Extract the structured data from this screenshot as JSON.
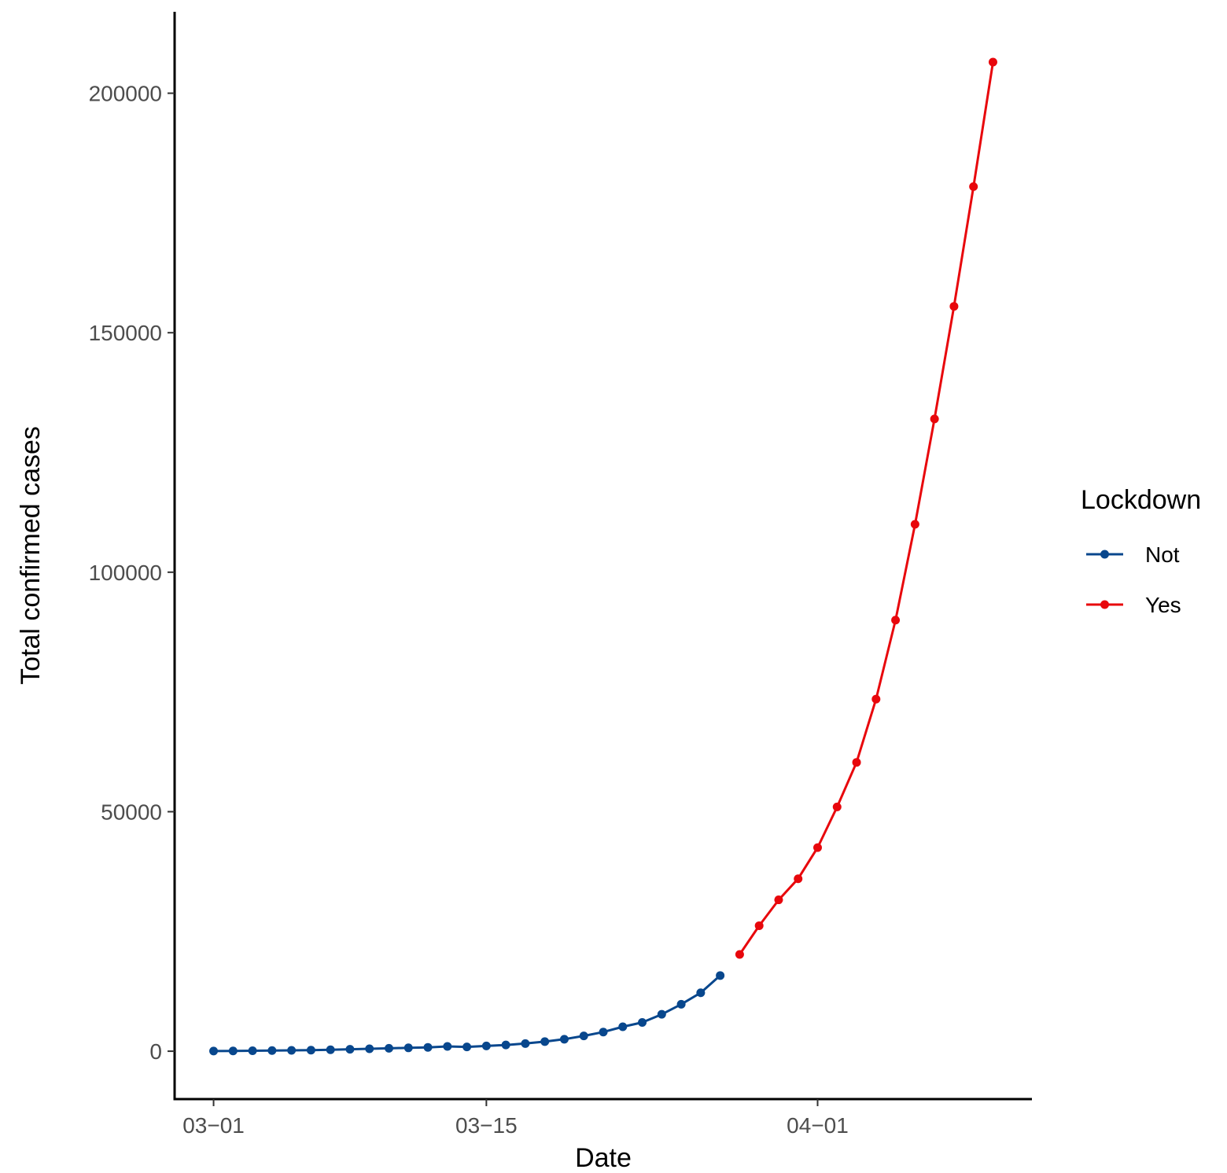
{
  "chart_data": {
    "type": "line",
    "title": "",
    "xlabel": "Date",
    "ylabel": "Total confirmed cases",
    "x_ticks": [
      "03-01",
      "03-15",
      "04-01"
    ],
    "y_ticks": [
      0,
      50000,
      100000,
      150000,
      200000
    ],
    "y_tick_labels": [
      "0",
      "50000",
      "100000",
      "150000",
      "200000"
    ],
    "xlim": [
      "02-28",
      "04-12"
    ],
    "ylim": [
      -10000,
      217000
    ],
    "grid": false,
    "legend": {
      "title": "Lockdown",
      "position": "right"
    },
    "series": [
      {
        "name": "Not",
        "color": "#08478d",
        "x": [
          "03-01",
          "03-02",
          "03-03",
          "03-04",
          "03-05",
          "03-06",
          "03-07",
          "03-08",
          "03-09",
          "03-10",
          "03-11",
          "03-12",
          "03-13",
          "03-14",
          "03-15",
          "03-16",
          "03-17",
          "03-18",
          "03-19",
          "03-20",
          "03-21",
          "03-22",
          "03-23",
          "03-24",
          "03-25",
          "03-26",
          "03-27"
        ],
        "values": [
          30,
          60,
          100,
          130,
          170,
          220,
          300,
          400,
          500,
          600,
          700,
          800,
          1000,
          900,
          1100,
          1300,
          1600,
          2000,
          2500,
          3200,
          4000,
          5100,
          6000,
          7700,
          9800,
          12200,
          15800
        ]
      },
      {
        "name": "Yes",
        "color": "#e8070c",
        "x": [
          "03-28",
          "03-29",
          "03-30",
          "03-31",
          "04-01",
          "04-02",
          "04-03",
          "04-04",
          "04-05",
          "04-06",
          "04-07",
          "04-08",
          "04-09",
          "04-10"
        ],
        "values": [
          20200,
          26200,
          31600,
          36000,
          42500,
          51000,
          60300,
          73500,
          90000,
          110000,
          132000,
          155500,
          180500,
          206500
        ]
      }
    ]
  }
}
